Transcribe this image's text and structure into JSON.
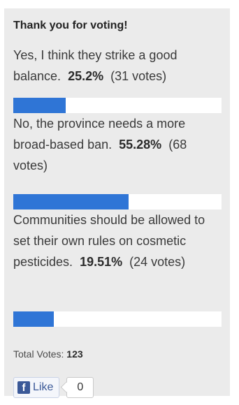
{
  "poll": {
    "title": "Thank you for voting!",
    "answers": [
      {
        "text": "Yes, I think they strike a good balance.",
        "percent_label": "25.2%",
        "votes_label": "(31 votes)",
        "fraction": 0.252
      },
      {
        "text": "No, the province needs a more broad-based ban.",
        "percent_label": "55.28%",
        "votes_label": "(68 votes)",
        "fraction": 0.5528
      },
      {
        "text": "Communities should be allowed to set their own rules on cosmetic pesticides.",
        "percent_label": "19.51%",
        "votes_label": "(24 votes)",
        "fraction": 0.1951
      }
    ],
    "total_label": "Total Votes:",
    "total_value": "123"
  },
  "facebook": {
    "icon": "facebook-icon",
    "icon_glyph": "f",
    "like_label": "Like",
    "like_count": "0"
  },
  "colors": {
    "bar": "#2f75d6",
    "panel": "#ebebeb"
  }
}
